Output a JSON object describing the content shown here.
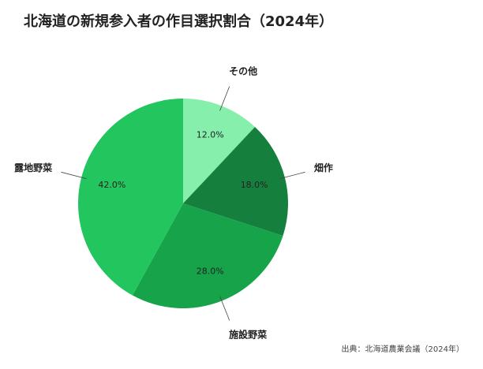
{
  "chart_data": {
    "type": "pie",
    "title": "北海道の新規参入者の作目選択割合（2024年）",
    "categories": [
      "その他",
      "畑作",
      "施設野菜",
      "露地野菜"
    ],
    "values": [
      12.0,
      18.0,
      28.0,
      42.0
    ],
    "value_labels": [
      "12.0%",
      "18.0%",
      "28.0%",
      "42.0%"
    ],
    "colors": [
      "#86efac",
      "#15803d",
      "#16a34a",
      "#22c55e"
    ],
    "source": "出典：北海道農業会議（2024年）"
  }
}
